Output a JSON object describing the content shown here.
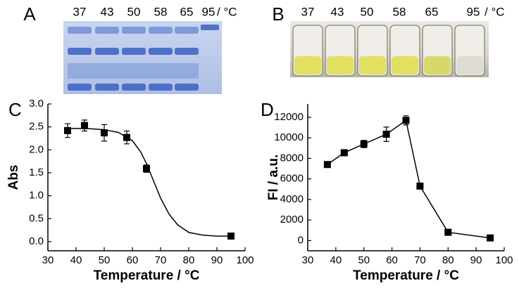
{
  "gel_panel": {
    "label": "A",
    "lanes": [
      "37",
      "43",
      "50",
      "58",
      "65",
      "95"
    ],
    "unit": "/ °C"
  },
  "vial_panel": {
    "label": "B",
    "lanes": [
      "37",
      "43",
      "50",
      "58",
      "65",
      "95"
    ],
    "unit": "/ °C"
  },
  "chart_data": [
    {
      "type": "scatter",
      "label": "C",
      "xlabel": "Temperature / °C",
      "ylabel": "Abs",
      "xlim": [
        30,
        100
      ],
      "xticks": [
        30,
        40,
        50,
        60,
        70,
        80,
        90,
        100
      ],
      "ylim": [
        -0.2,
        3.0
      ],
      "yticks": [
        {
          "value": 0,
          "label": "0.0"
        },
        0.5,
        {
          "value": 1,
          "label": "1.0"
        },
        1.5,
        {
          "value": 2,
          "label": "2.0"
        },
        2.5,
        {
          "value": 3,
          "label": "3.0"
        }
      ],
      "series": [
        {
          "color": "#000000",
          "marker": "square",
          "line": false,
          "x": [
            37,
            43,
            50,
            58,
            65,
            95
          ],
          "values": [
            2.42,
            2.53,
            2.37,
            2.27,
            1.59,
            0.12
          ],
          "errors": [
            0.15,
            0.12,
            0.18,
            0.14,
            0.08,
            0.02
          ]
        },
        {
          "color": "#000000",
          "line": true,
          "x": [
            37,
            45,
            50,
            55,
            60,
            63,
            65,
            67,
            70,
            73,
            76,
            80,
            85,
            90,
            95
          ],
          "values": [
            2.47,
            2.46,
            2.44,
            2.38,
            2.2,
            1.95,
            1.7,
            1.4,
            0.95,
            0.6,
            0.37,
            0.2,
            0.14,
            0.12,
            0.12
          ]
        }
      ]
    },
    {
      "type": "scatter",
      "label": "D",
      "xlabel": "Temperature / °C",
      "ylabel": "FI / a.u.",
      "xlim": [
        30,
        100
      ],
      "xticks": [
        30,
        40,
        50,
        60,
        70,
        80,
        90,
        100
      ],
      "ylim": [
        -1000,
        13300
      ],
      "yticks": [
        0,
        2000,
        4000,
        6000,
        8000,
        10000,
        12000
      ],
      "series": [
        {
          "color": "#000000",
          "marker": "square",
          "line": true,
          "x": [
            37,
            43,
            50,
            58,
            65,
            70,
            80,
            95
          ],
          "values": [
            7400,
            8550,
            9400,
            10350,
            11700,
            5300,
            800,
            250
          ],
          "errors": [
            200,
            250,
            350,
            700,
            450,
            250,
            100,
            50
          ]
        }
      ]
    }
  ]
}
